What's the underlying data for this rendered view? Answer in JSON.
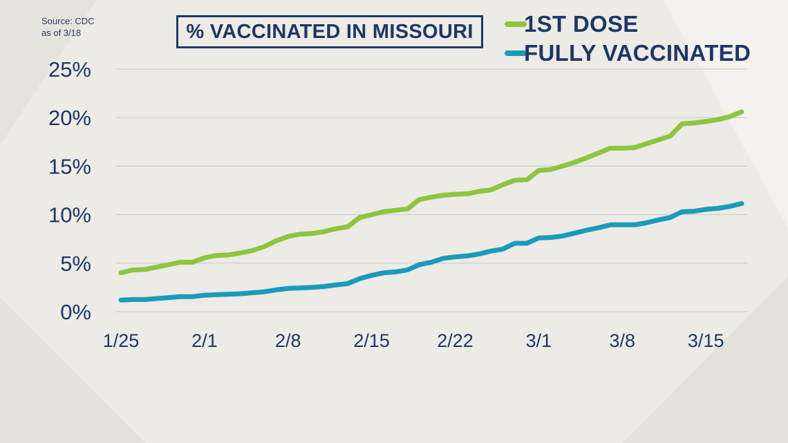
{
  "source": {
    "line1": "Source: CDC",
    "line2": "as of 3/18"
  },
  "chart_data": {
    "type": "line",
    "title": "% VACCINATED IN MISSOURI",
    "xlabel": "",
    "ylabel": "",
    "ylim": [
      0,
      25
    ],
    "y_ticks": [
      "0%",
      "5%",
      "10%",
      "15%",
      "20%",
      "25%"
    ],
    "y_tick_values": [
      0,
      5,
      10,
      15,
      20,
      25
    ],
    "x_ticks": [
      "1/25",
      "2/1",
      "2/8",
      "2/15",
      "2/22",
      "3/1",
      "3/8",
      "3/15"
    ],
    "x_tick_values": [
      "2021-01-25",
      "2021-02-01",
      "2021-02-08",
      "2021-02-15",
      "2021-02-22",
      "2021-03-01",
      "2021-03-08",
      "2021-03-15"
    ],
    "x_range": [
      "2021-01-25",
      "2021-03-18"
    ],
    "grid": "horizontal",
    "legend": "top-right",
    "x": [
      "2021-01-25",
      "2021-01-26",
      "2021-01-27",
      "2021-01-28",
      "2021-01-29",
      "2021-01-30",
      "2021-01-31",
      "2021-02-01",
      "2021-02-02",
      "2021-02-03",
      "2021-02-04",
      "2021-02-05",
      "2021-02-06",
      "2021-02-07",
      "2021-02-08",
      "2021-02-09",
      "2021-02-10",
      "2021-02-11",
      "2021-02-12",
      "2021-02-13",
      "2021-02-14",
      "2021-02-15",
      "2021-02-16",
      "2021-02-17",
      "2021-02-18",
      "2021-02-19",
      "2021-02-20",
      "2021-02-21",
      "2021-02-22",
      "2021-02-23",
      "2021-02-24",
      "2021-02-25",
      "2021-02-26",
      "2021-02-27",
      "2021-02-28",
      "2021-03-01",
      "2021-03-02",
      "2021-03-03",
      "2021-03-04",
      "2021-03-05",
      "2021-03-06",
      "2021-03-07",
      "2021-03-08",
      "2021-03-09",
      "2021-03-10",
      "2021-03-11",
      "2021-03-12",
      "2021-03-13",
      "2021-03-14",
      "2021-03-15",
      "2021-03-16",
      "2021-03-17",
      "2021-03-18"
    ],
    "series": [
      {
        "name": "1ST DOSE",
        "color": "#8cc63f",
        "values": [
          4.0,
          4.3,
          4.35,
          4.6,
          4.85,
          5.1,
          5.1,
          5.55,
          5.8,
          5.85,
          6.05,
          6.3,
          6.7,
          7.3,
          7.75,
          8.0,
          8.05,
          8.25,
          8.55,
          8.75,
          9.7,
          10.0,
          10.3,
          10.45,
          10.6,
          11.55,
          11.8,
          12.0,
          12.1,
          12.15,
          12.4,
          12.55,
          13.1,
          13.55,
          13.6,
          14.55,
          14.65,
          15.0,
          15.4,
          15.85,
          16.35,
          16.85,
          16.85,
          16.9,
          17.3,
          17.7,
          18.1,
          19.35,
          19.45,
          19.6,
          19.8,
          20.1,
          20.6
        ]
      },
      {
        "name": "FULLY VACCINATED",
        "color": "#1a9bb9",
        "values": [
          1.2,
          1.25,
          1.25,
          1.35,
          1.45,
          1.55,
          1.55,
          1.7,
          1.75,
          1.8,
          1.85,
          1.95,
          2.05,
          2.25,
          2.4,
          2.45,
          2.5,
          2.6,
          2.75,
          2.9,
          3.4,
          3.75,
          4.0,
          4.1,
          4.3,
          4.85,
          5.1,
          5.5,
          5.65,
          5.75,
          5.95,
          6.25,
          6.45,
          7.05,
          7.05,
          7.6,
          7.65,
          7.8,
          8.1,
          8.4,
          8.65,
          8.95,
          8.95,
          8.95,
          9.15,
          9.45,
          9.7,
          10.3,
          10.35,
          10.55,
          10.65,
          10.85,
          11.15
        ]
      }
    ]
  }
}
